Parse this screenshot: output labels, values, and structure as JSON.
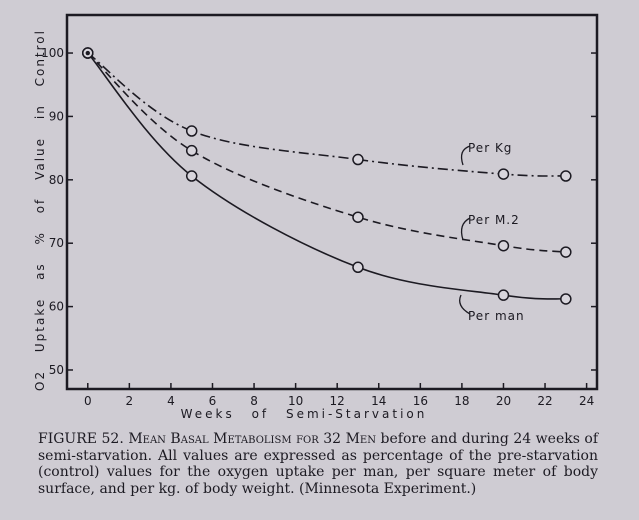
{
  "chart_data": {
    "type": "line",
    "xlabel": "Weeks of Semi-Starvation",
    "ylabel": "O2 Uptake as % of Value in Control",
    "xlim": [
      -1,
      24.5
    ],
    "ylim": [
      47,
      106
    ],
    "xticks": [
      0,
      2,
      4,
      6,
      8,
      10,
      12,
      14,
      16,
      18,
      20,
      22,
      24
    ],
    "yticks": [
      50,
      60,
      70,
      80,
      90,
      100
    ],
    "grid": false,
    "series": [
      {
        "name": "Per Kg",
        "style": "dash-dot",
        "x": [
          0,
          5,
          13,
          20,
          23
        ],
        "values": [
          100,
          87.7,
          83.2,
          80.9,
          80.6
        ]
      },
      {
        "name": "Per M.2",
        "style": "dashed",
        "x": [
          0,
          5,
          13,
          20,
          23
        ],
        "values": [
          100,
          84.6,
          74.1,
          69.6,
          68.6
        ]
      },
      {
        "name": "Per man",
        "style": "solid",
        "x": [
          0,
          5,
          13,
          20,
          23
        ],
        "values": [
          100,
          80.6,
          66.2,
          61.8,
          61.2
        ]
      }
    ]
  },
  "caption": {
    "prefix": "FIGURE 52.",
    "title": "Mean Basal Metabolism for 32 Men",
    "text": "before and during 24 weeks of semi-starvation. All values are expressed as percentage of the pre-starvation (control) values for the oxygen uptake per man, per square meter of body surface, and per kg. of body weight. (Minnesota Experiment.)"
  }
}
